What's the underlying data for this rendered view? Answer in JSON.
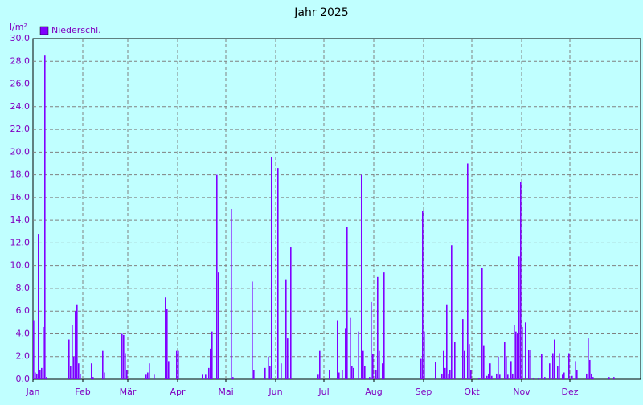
{
  "chart_data": {
    "type": "bar",
    "title": "Jahr 2025",
    "y_label": "l/m²",
    "series": [
      {
        "name": "Niederschl.",
        "color": "#8000ff",
        "values": [
          5.2,
          0.6,
          0.5,
          12.8,
          0.8,
          1.0,
          4.6,
          28.5,
          0.2,
          0,
          0,
          0,
          0,
          0,
          0,
          0,
          0,
          0,
          0,
          0,
          0,
          0,
          3.5,
          1.2,
          4.8,
          2.0,
          6.0,
          6.6,
          1.4,
          0.5,
          0,
          0,
          0,
          0,
          0,
          0,
          1.4,
          0.2,
          0,
          0,
          0,
          0,
          0,
          2.5,
          0.6,
          0,
          0,
          0,
          0,
          0,
          0,
          0,
          0,
          0,
          0,
          4.0,
          3.9,
          2.3,
          0.8,
          0,
          0,
          0,
          0,
          0,
          0,
          0,
          0,
          0,
          0,
          0,
          0.4,
          0.6,
          1.4,
          0,
          0,
          0.4,
          0,
          0,
          0,
          0,
          0,
          0,
          7.2,
          6.2,
          1.6,
          0,
          0,
          0,
          0,
          2.5,
          2.5,
          0,
          0,
          0,
          0,
          0,
          0,
          0,
          0,
          0,
          0,
          0,
          0,
          0,
          0,
          0.4,
          0,
          0.4,
          0,
          1.0,
          2.7,
          4.2,
          0,
          0,
          18.0,
          9.4,
          0,
          0,
          0,
          0,
          0,
          0,
          0,
          15.0,
          0.2,
          0,
          0,
          0,
          0,
          0,
          0,
          0,
          0,
          0,
          0,
          0,
          8.6,
          0.8,
          0,
          0,
          0,
          0,
          0,
          0,
          1.0,
          0,
          2.0,
          1.2,
          19.6,
          0,
          0,
          0,
          18.6,
          0,
          1.4,
          0,
          0,
          8.8,
          3.6,
          0,
          11.6,
          0,
          0,
          0,
          0,
          0,
          0,
          0,
          0,
          0,
          0,
          0,
          0,
          0,
          0,
          0,
          0,
          0.4,
          2.5,
          0,
          0,
          0,
          0,
          0,
          0.8,
          0,
          0,
          0,
          0,
          5.2,
          0.6,
          0,
          0.8,
          0,
          4.5,
          13.4,
          0,
          5.4,
          1.2,
          1.0,
          0,
          0,
          4.2,
          0,
          18.0,
          2.5,
          1.2,
          0,
          0,
          0.2,
          6.8,
          2.2,
          0,
          0.8,
          9.0,
          2.5,
          0,
          1.4,
          9.4,
          0,
          0,
          0,
          0,
          0,
          0,
          0,
          0,
          0,
          0,
          0,
          0,
          0,
          0,
          0,
          0,
          0,
          0,
          0,
          0,
          0,
          0,
          1.8,
          14.8,
          4.2,
          0,
          0,
          0,
          0,
          0,
          0,
          1.5,
          0,
          0,
          0,
          0.5,
          2.5,
          1.0,
          6.6,
          0.5,
          0.8,
          11.8,
          0,
          3.3,
          0,
          0,
          0,
          0,
          5.3,
          2.5,
          0,
          19.0,
          3.1,
          0.8,
          0,
          0,
          0,
          0,
          0.1,
          0,
          9.8,
          3.0,
          0,
          0.3,
          0.5,
          1.4,
          0.3,
          0,
          0,
          0.5,
          2.0,
          0.4,
          0,
          0,
          3.3,
          2.0,
          0.4,
          0,
          1.6,
          0.5,
          4.8,
          4.2,
          4.0,
          10.8,
          17.4,
          4.6,
          0,
          5.0,
          0,
          2.6,
          2.6,
          0,
          0.1,
          0,
          0,
          0.1,
          0,
          2.2,
          0,
          0.2,
          0,
          0,
          1.4,
          0,
          2.3,
          3.5,
          0,
          1.2,
          2.3,
          0,
          0.4,
          0.6,
          0,
          0,
          2.3,
          0,
          0.3,
          0,
          1.6,
          0.8,
          0,
          0,
          0,
          0,
          0,
          0.5,
          3.6,
          1.7,
          0.5,
          0.2,
          0,
          0,
          0,
          0,
          0,
          0,
          0,
          0,
          0,
          0.2,
          0,
          0,
          0.2,
          0,
          0,
          0
        ]
      }
    ],
    "categories": [
      "Jan",
      null,
      null,
      null,
      null,
      null,
      null,
      null,
      null,
      null,
      null,
      null,
      null,
      null,
      null,
      null,
      null,
      null,
      null,
      null,
      null,
      null,
      null,
      null,
      null,
      null,
      null,
      null,
      null,
      null,
      null,
      "Feb",
      null,
      null,
      null,
      null,
      null,
      null,
      null,
      null,
      null,
      null,
      null,
      null,
      null,
      null,
      null,
      null,
      null,
      null,
      null,
      null,
      null,
      null,
      null,
      null,
      null,
      null,
      null,
      "Mär",
      null,
      null,
      null,
      null,
      null,
      null,
      null,
      null,
      null,
      null,
      null,
      null,
      null,
      null,
      null,
      null,
      null,
      null,
      null,
      null,
      null,
      null,
      null,
      null,
      null,
      null,
      null,
      null,
      null,
      null,
      "Apr",
      null,
      null,
      null,
      null,
      null,
      null,
      null,
      null,
      null,
      null,
      null,
      null,
      null,
      null,
      null,
      null,
      null,
      null,
      null,
      null,
      null,
      null,
      null,
      null,
      null,
      null,
      null,
      null,
      null,
      "Mai",
      null,
      null,
      null,
      null,
      null,
      null,
      null,
      null,
      null,
      null,
      null,
      null,
      null,
      null,
      null,
      null,
      null,
      null,
      null,
      null,
      null,
      null,
      null,
      null,
      null,
      null,
      null,
      null,
      null,
      null,
      "Jun",
      null,
      null,
      null,
      null,
      null,
      null,
      null,
      null,
      null,
      null,
      null,
      null,
      null,
      null,
      null,
      null,
      null,
      null,
      null,
      null,
      null,
      null,
      null,
      null,
      null,
      null,
      null,
      null,
      null,
      "Jul",
      null,
      null,
      null,
      null,
      null,
      null,
      null,
      null,
      null,
      null,
      null,
      null,
      null,
      null,
      null,
      null,
      null,
      null,
      null,
      null,
      null,
      null,
      null,
      null,
      null,
      null,
      null,
      null,
      null,
      null,
      "Aug",
      null,
      null,
      null,
      null,
      null,
      null,
      null,
      null,
      null,
      null,
      null,
      null,
      null,
      null,
      null,
      null,
      null,
      null,
      null,
      null,
      null,
      null,
      null,
      null,
      null,
      null,
      null,
      null,
      null,
      null,
      "Sep",
      null,
      null,
      null,
      null,
      null,
      null,
      null,
      null,
      null,
      null,
      null,
      null,
      null,
      null,
      null,
      null,
      null,
      null,
      null,
      null,
      null,
      null,
      null,
      null,
      null,
      null,
      null,
      null,
      null,
      "Okt",
      null,
      null,
      null,
      null,
      null,
      null,
      null,
      null,
      null,
      null,
      null,
      null,
      null,
      null,
      null,
      null,
      null,
      null,
      null,
      null,
      null,
      null,
      null,
      null,
      null,
      null,
      null,
      null,
      null,
      null,
      "Nov",
      null,
      null,
      null,
      null,
      null,
      null,
      null,
      null,
      null,
      null,
      null,
      null,
      null,
      null,
      null,
      null,
      null,
      null,
      null,
      null,
      null,
      null,
      null,
      null,
      null,
      null,
      null,
      null,
      null,
      "Dez",
      null,
      null,
      null,
      null,
      null,
      null,
      null,
      null,
      null,
      null,
      null,
      null,
      null,
      null,
      null,
      null,
      null,
      null,
      null,
      null,
      null,
      null,
      null,
      null,
      null,
      null,
      null,
      null,
      null,
      null
    ],
    "ylim": [
      0,
      30
    ],
    "yticks": [
      {
        "value": 0,
        "label": "0.0"
      },
      {
        "value": 2,
        "label": "2.0"
      },
      {
        "value": 4,
        "label": "4.0"
      },
      {
        "value": 6,
        "label": "6.0"
      },
      {
        "value": 8,
        "label": "8.0"
      },
      {
        "value": 10,
        "label": "10.0"
      },
      {
        "value": 12,
        "label": "12.0"
      },
      {
        "value": 14,
        "label": "14.0"
      },
      {
        "value": 16,
        "label": "16.0"
      },
      {
        "value": 18,
        "label": "18.0"
      },
      {
        "value": 20,
        "label": "20.0"
      },
      {
        "value": 22,
        "label": "22.0"
      },
      {
        "value": 24,
        "label": "24.0"
      },
      {
        "value": 26,
        "label": "26.0"
      },
      {
        "value": 28,
        "label": "28.0"
      },
      {
        "value": 30,
        "label": "30.0"
      }
    ],
    "grid": true,
    "legend": "top-left"
  }
}
